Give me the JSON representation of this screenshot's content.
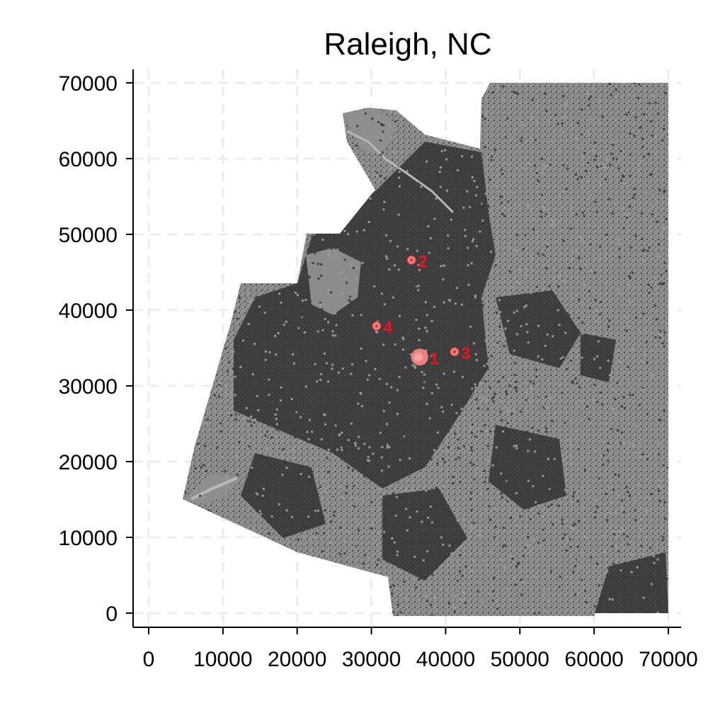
{
  "title": "Raleigh, NC",
  "chart_data": {
    "type": "scatter",
    "title": "Raleigh, NC",
    "xlabel": "",
    "ylabel": "",
    "xlim": [
      -2000,
      72000
    ],
    "ylim": [
      -2000,
      72000
    ],
    "xticks": [
      0,
      10000,
      20000,
      30000,
      40000,
      50000,
      60000,
      70000
    ],
    "yticks": [
      0,
      10000,
      20000,
      30000,
      40000,
      50000,
      60000,
      70000
    ],
    "xtick_labels": [
      "0",
      "10000",
      "20000",
      "30000",
      "40000",
      "50000",
      "60000",
      "70000"
    ],
    "ytick_labels": [
      "0",
      "10000",
      "20000",
      "30000",
      "40000",
      "50000",
      "60000",
      "70000"
    ],
    "grid": true,
    "background_raster": "gray land-cover map; dark = developed, medium = undeveloped, light = water",
    "points": [
      {
        "label": "1",
        "x": 36500,
        "y": 33800,
        "size": "large"
      },
      {
        "label": "2",
        "x": 35400,
        "y": 46600,
        "size": "small"
      },
      {
        "label": "3",
        "x": 41200,
        "y": 34500,
        "size": "small"
      },
      {
        "label": "4",
        "x": 30700,
        "y": 37900,
        "size": "small"
      }
    ],
    "colors": {
      "point": "#f08080",
      "label": "#e8141e",
      "developed": "#3c3c3c",
      "undeveloped": "#8f8f8f",
      "water": "#b9b9b9",
      "grid": "#ececec"
    }
  }
}
